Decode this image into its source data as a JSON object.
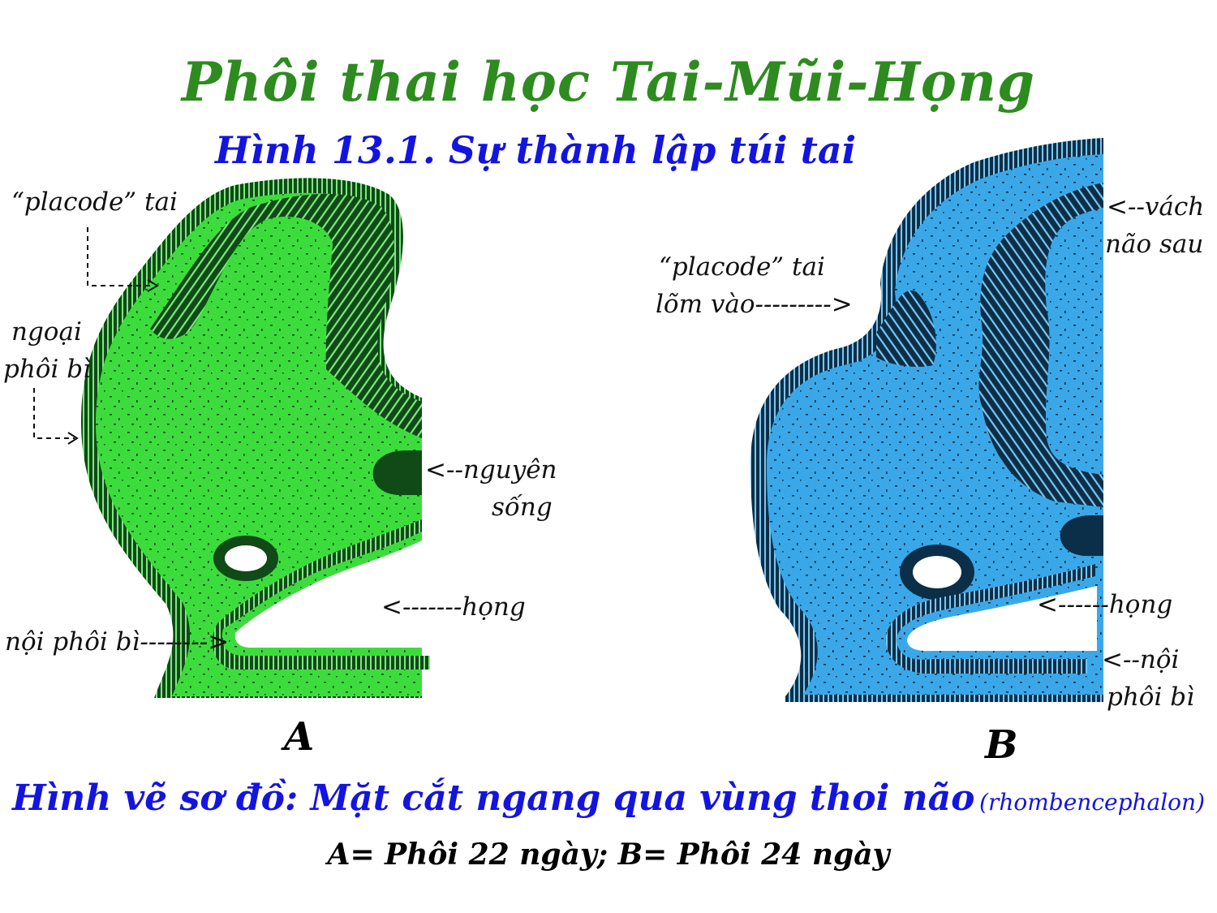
{
  "title": "Phôi thai học Tai-Mũi-Họng",
  "subtitle": "Hình 13.1.  Sự thành lập túi tai",
  "colors": {
    "title": "#2e8b1f",
    "subtitle": "#1414e0",
    "panel_a_fill": "#3ddc3d",
    "panel_a_dark": "#0f4a17",
    "panel_b_fill": "#3aa8e8",
    "panel_b_dark": "#0b2f48"
  },
  "panel_a": {
    "letter": "A",
    "labels": {
      "placode_tai": "“placode” tai",
      "ngoai_phoi_bi_1": "ngoại",
      "ngoai_phoi_bi_2": "phôi bì",
      "nguyen_song_1": "<--nguyên",
      "nguyen_song_2": "sống",
      "hong": "<-------họng",
      "noi_phoi_bi": "nội phôi bì-------->"
    }
  },
  "panel_b": {
    "letter": "B",
    "labels": {
      "vach_nao_sau_1": "<--vách",
      "vach_nao_sau_2": "não sau",
      "placode_lom_1": "“placode” tai",
      "placode_lom_2": "lõm vào--------->",
      "hong": "<------họng",
      "noi_phoi_bi_1": "<--nội",
      "noi_phoi_bi_2": "phôi bì"
    }
  },
  "caption": {
    "main": "Hình vẽ sơ đồ: Mặt cắt ngang qua vùng thoi não",
    "note": "(rhombencephalon)",
    "line2": "A= Phôi 22 ngày;   B= Phôi 24 ngày"
  }
}
